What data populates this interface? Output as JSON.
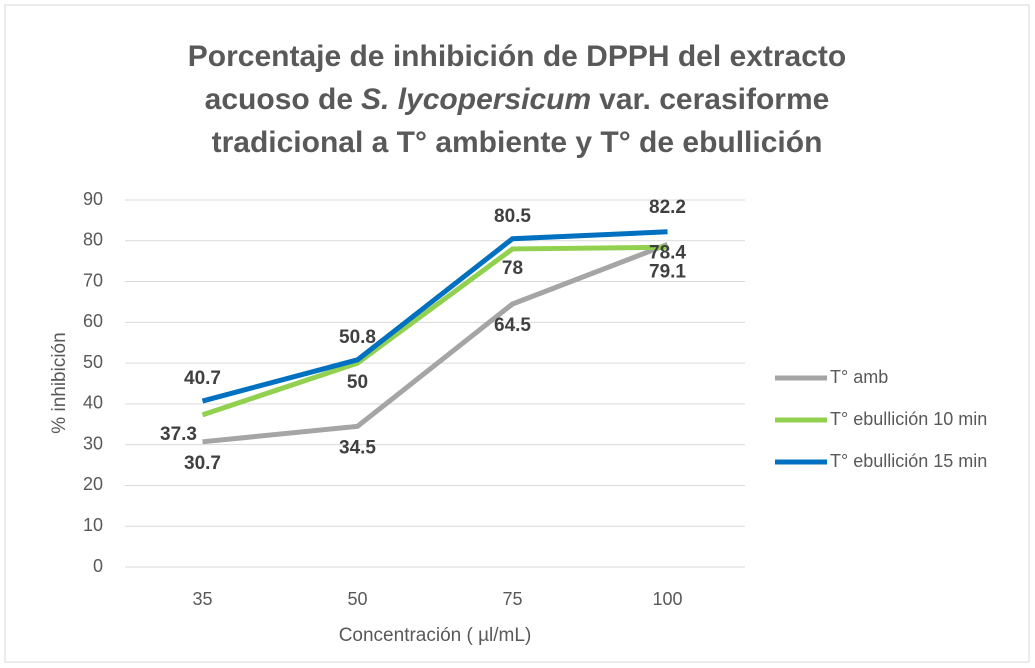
{
  "chart_data": {
    "type": "line",
    "title": [
      [
        {
          "text": "Porcentaje de inhibición de DPPH del extracto"
        }
      ],
      [
        {
          "text": "acuoso de"
        },
        {
          "text": "S. lycopersicum",
          "italic": true
        },
        {
          "text": "var. cerasiforme"
        }
      ],
      [
        {
          "text": "tradicional a T° ambiente y T° de ebullición"
        }
      ]
    ],
    "xlabel": "Concentración ( µl/mL)",
    "ylabel": "% inhibición",
    "categories": [
      "35",
      "50",
      "75",
      "100"
    ],
    "series": [
      {
        "name": "T° amb",
        "color": "#a5a5a5",
        "values": [
          30.7,
          34.5,
          64.5,
          79.1
        ]
      },
      {
        "name": "T° ebullición 10 min",
        "color": "#92d050",
        "values": [
          37.3,
          50,
          78,
          78.4
        ]
      },
      {
        "name": "T° ebullición 15 min",
        "color": "#0070c0",
        "values": [
          40.7,
          50.8,
          80.5,
          82.2
        ]
      }
    ],
    "ylim": [
      0,
      90
    ],
    "yticks": [
      0,
      10,
      20,
      30,
      40,
      50,
      60,
      70,
      80,
      90
    ],
    "grid": true,
    "legend": "right"
  }
}
